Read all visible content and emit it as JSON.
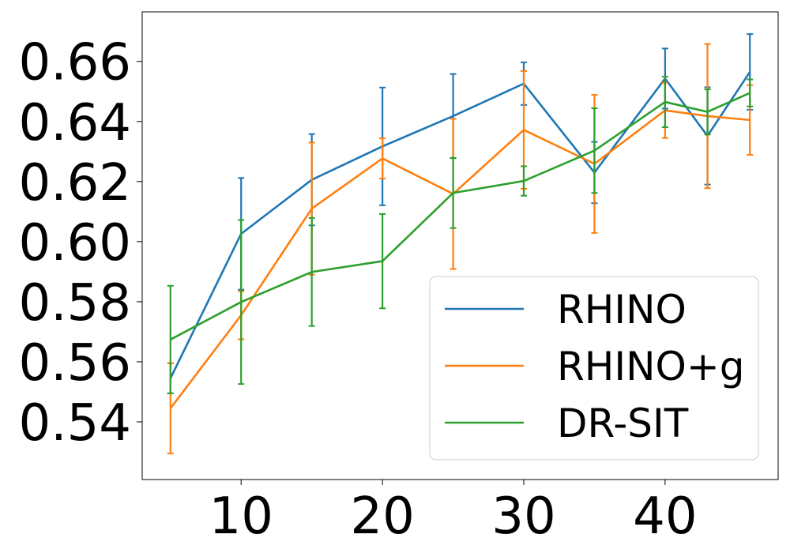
{
  "chart_data": {
    "type": "line",
    "title": "",
    "xlabel": "",
    "ylabel": "",
    "grid": false,
    "legend_position": "bottom-right",
    "xlim": [
      3,
      48
    ],
    "ylim": [
      0.5208,
      0.6765
    ],
    "x_ticks": [
      10,
      20,
      30,
      40
    ],
    "x_tick_labels": [
      "10",
      "20",
      "30",
      "40"
    ],
    "y_ticks": [
      0.54,
      0.56,
      0.58,
      0.6,
      0.62,
      0.64,
      0.66
    ],
    "y_tick_labels": [
      "0.54",
      "0.56",
      "0.58",
      "0.60",
      "0.62",
      "0.64",
      "0.66"
    ],
    "x": [
      5,
      10,
      15,
      20,
      25,
      30,
      35,
      40,
      43,
      46
    ],
    "series": [
      {
        "name": "RHINO",
        "color": "#1f77b4",
        "values": [
          0.5545,
          0.6026,
          0.6206,
          0.6317,
          0.6418,
          0.6526,
          0.623,
          0.6543,
          0.6352,
          0.6565
        ],
        "errors": [
          0.005,
          0.0186,
          0.0152,
          0.0196,
          0.014,
          0.0071,
          0.0102,
          0.01,
          0.0162,
          0.0126
        ]
      },
      {
        "name": "RHINO+g",
        "color": "#ff7f0e",
        "values": [
          0.5445,
          0.5755,
          0.611,
          0.6277,
          0.6159,
          0.6372,
          0.6259,
          0.6437,
          0.6418,
          0.6405
        ],
        "errors": [
          0.015,
          0.008,
          0.022,
          0.0067,
          0.025,
          0.0196,
          0.023,
          0.0092,
          0.024,
          0.0116
        ]
      },
      {
        "name": "DR-SIT",
        "color": "#2ca02c",
        "values": [
          0.5674,
          0.5799,
          0.5899,
          0.5935,
          0.6162,
          0.6202,
          0.6303,
          0.6465,
          0.6432,
          0.6495
        ],
        "errors": [
          0.0179,
          0.0273,
          0.018,
          0.0157,
          0.0117,
          0.0049,
          0.0141,
          0.0084,
          0.0075,
          0.0045
        ]
      }
    ]
  }
}
